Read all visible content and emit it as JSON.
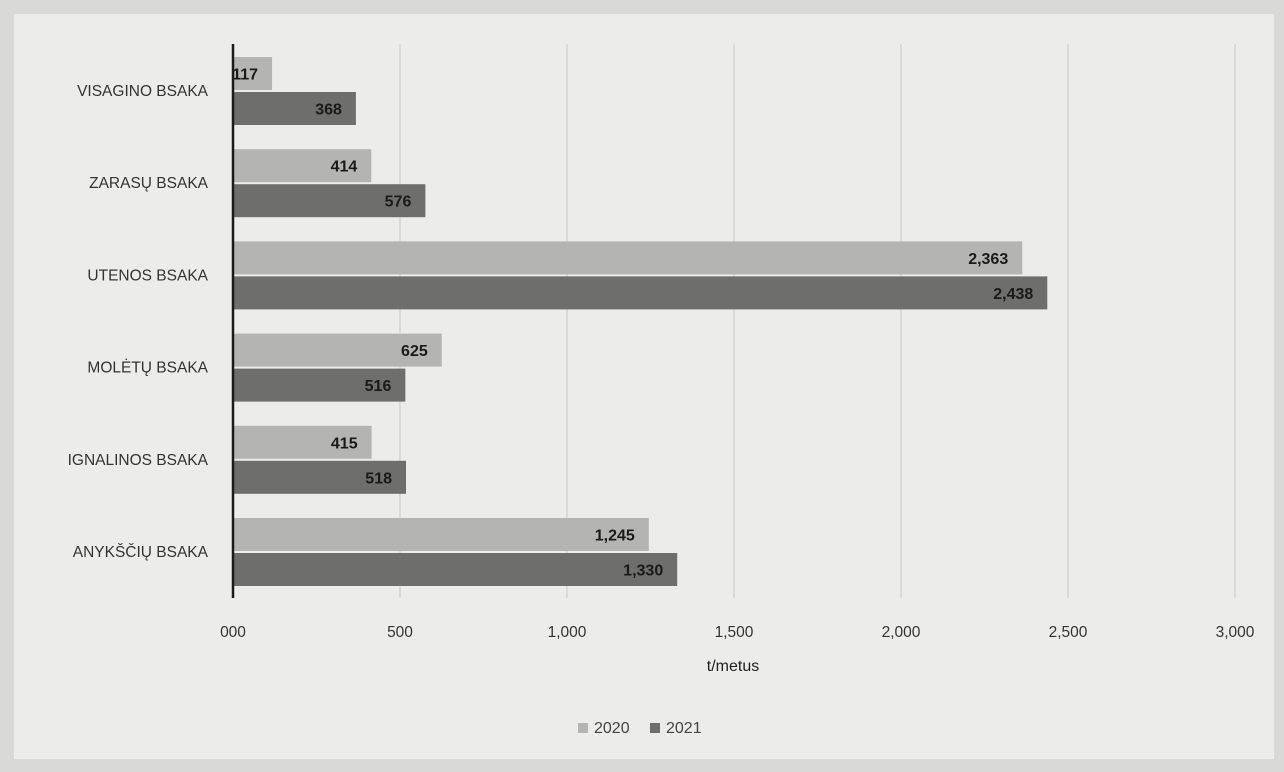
{
  "colors": {
    "page_bg": "#d9d9d7",
    "paper_bg": "#ececea",
    "gridline": "#c7c7c5",
    "axis": "#1c1c1c",
    "series_2020": "#b4b4b2",
    "series_2021": "#6e6e6c",
    "label_text": "#333333",
    "value_text": "#1a1a1a"
  },
  "chart_data": {
    "type": "bar",
    "orientation": "horizontal",
    "title": "",
    "xlabel": "t/metus",
    "ylabel": "",
    "xlim": [
      0,
      3000
    ],
    "x_ticks": [
      0,
      500,
      1000,
      1500,
      2000,
      2500,
      3000
    ],
    "x_tick_labels": [
      "000",
      "500",
      "1,000",
      "1,500",
      "2,000",
      "2,500",
      "3,000"
    ],
    "grid": true,
    "legend_position": "bottom",
    "categories": [
      "VISAGINO BSAKA",
      "ZARASŲ BSAKA",
      "UTENOS BSAKA",
      "MOLĖTŲ BSAKA",
      "IGNALINOS BSAKA",
      "ANYKŠČIŲ BSAKA"
    ],
    "series": [
      {
        "name": "2020",
        "values": [
          117,
          414,
          2363,
          625,
          415,
          1245
        ],
        "labels": [
          "117",
          "414",
          "2,363",
          "625",
          "415",
          "1,245"
        ]
      },
      {
        "name": "2021",
        "values": [
          368,
          576,
          2438,
          516,
          518,
          1330
        ],
        "labels": [
          "368",
          "576",
          "2,438",
          "516",
          "518",
          "1,330"
        ]
      }
    ]
  }
}
